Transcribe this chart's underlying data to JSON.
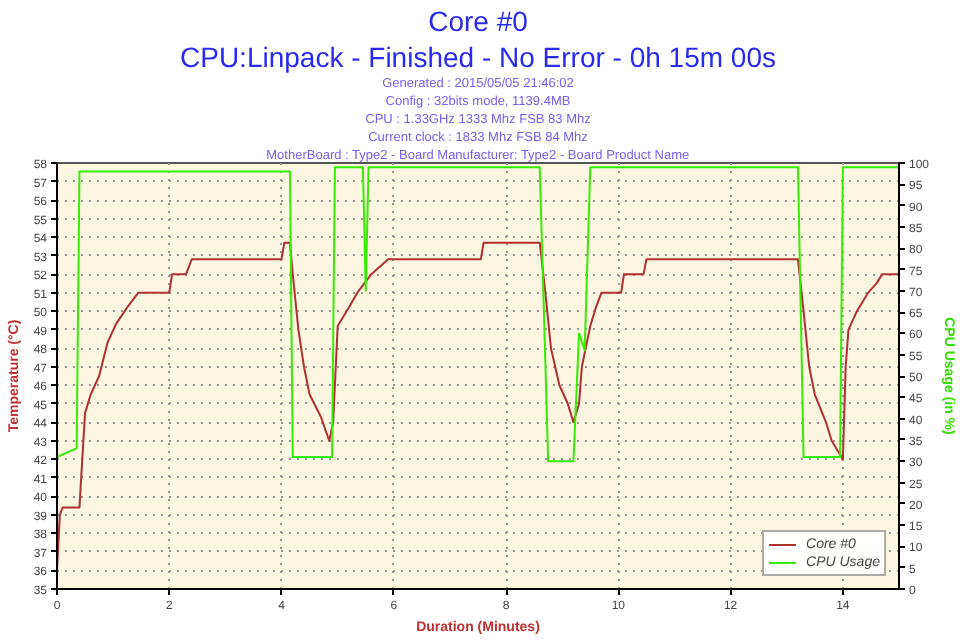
{
  "chart_data": {
    "type": "line",
    "title": "Core #0",
    "subtitle": "CPU:Linpack - Finished - No Error - 0h 15m 00s",
    "annotations": [
      "Generated : 2015/05/05 21:46:02",
      "Config : 32bits mode, 1139.4MB",
      "CPU : 1.33GHz 1333 Mhz FSB 83 Mhz",
      "Current clock : 1833 Mhz FSB 84 Mhz",
      "MotherBoard : Type2 - Board Manufacturer: Type2 - Board Product Name"
    ],
    "xlabel": "Duration (Minutes)",
    "ylabel": "Temperature (°C)",
    "y2label": "CPU Usage (in %)",
    "xlim": [
      0,
      15
    ],
    "xticks": [
      0,
      2,
      4,
      6,
      8,
      10,
      12,
      14
    ],
    "ylim": [
      35,
      58
    ],
    "yticks": [
      35,
      36,
      37,
      38,
      39,
      40,
      41,
      42,
      43,
      44,
      45,
      46,
      47,
      48,
      49,
      50,
      51,
      52,
      53,
      54,
      55,
      56,
      57,
      58
    ],
    "y2lim": [
      0,
      100
    ],
    "y2ticks": [
      0,
      5,
      10,
      15,
      20,
      25,
      30,
      35,
      40,
      45,
      50,
      55,
      60,
      65,
      70,
      75,
      80,
      85,
      90,
      95,
      100
    ],
    "grid": true,
    "legend": "bottom right",
    "line_style": "solid",
    "series": [
      {
        "name": "Core #0",
        "color": "#b03030",
        "x": [
          0,
          0.05,
          0.1,
          0.4,
          0.45,
          0.5,
          0.6,
          0.75,
          0.9,
          1.05,
          1.25,
          1.45,
          2.0,
          2.05,
          2.3,
          2.4,
          4.0,
          4.05,
          4.15,
          4.2,
          4.3,
          4.4,
          4.5,
          4.7,
          4.85,
          4.92,
          5.0,
          5.2,
          5.35,
          5.6,
          5.9,
          7.55,
          7.6,
          8.6,
          8.7,
          8.8,
          8.95,
          9.1,
          9.2,
          9.3,
          9.35,
          9.5,
          9.6,
          9.7,
          10.05,
          10.1,
          10.45,
          10.5,
          13.2,
          13.3,
          13.4,
          13.5,
          13.7,
          13.8,
          14.0,
          14.05,
          14.1,
          14.25,
          14.45,
          14.6,
          14.7,
          15
        ],
        "values": [
          36,
          39,
          39.4,
          39.4,
          42,
          44.5,
          45.5,
          46.5,
          48.3,
          49.3,
          50.2,
          51,
          51,
          52,
          52,
          52.8,
          52.8,
          53.7,
          53.7,
          52,
          49,
          47,
          45.5,
          44.3,
          43,
          44,
          49.2,
          50.2,
          51,
          52,
          52.8,
          52.8,
          53.7,
          53.7,
          51,
          48,
          46,
          45,
          44,
          45,
          47,
          49.2,
          50.2,
          51,
          51,
          52,
          52,
          52.8,
          52.8,
          50,
          47,
          45.5,
          44,
          43,
          42,
          47,
          49,
          50,
          51,
          51.5,
          52,
          52
        ]
      },
      {
        "name": "CPU Usage",
        "color": "#33ee00",
        "axis": "y2",
        "x": [
          0,
          0.35,
          0.4,
          4.15,
          4.2,
          4.9,
          4.95,
          5.45,
          5.5,
          5.55,
          8.6,
          8.75,
          9.2,
          9.3,
          9.4,
          9.5,
          13.2,
          13.3,
          13.95,
          14.0,
          15
        ],
        "values": [
          31,
          33,
          98,
          98,
          31,
          31,
          99,
          99,
          70,
          99,
          99,
          30,
          30,
          60,
          56,
          99,
          99,
          31,
          31,
          99,
          99
        ]
      }
    ]
  }
}
